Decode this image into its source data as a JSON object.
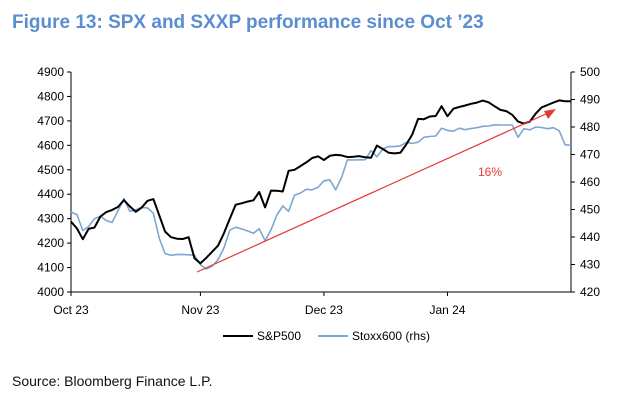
{
  "title": "Figure 13: SPX and SXXP performance since Oct ’23",
  "source": "Source: Bloomberg Finance L.P.",
  "chart_data": {
    "type": "line",
    "title": "Figure 13: SPX and SXXP performance since Oct ’23",
    "x_labels": [
      "Oct 23",
      "Nov 23",
      "Dec 23",
      "Jan 24"
    ],
    "x_label_index": [
      0,
      22,
      43,
      64
    ],
    "y_left": {
      "lim": [
        4000,
        4900
      ],
      "ticks": [
        4000,
        4100,
        4200,
        4300,
        4400,
        4500,
        4600,
        4700,
        4800,
        4900
      ]
    },
    "y_right": {
      "lim": [
        420,
        500
      ],
      "ticks": [
        420,
        430,
        440,
        450,
        460,
        470,
        480,
        490,
        500
      ]
    },
    "grid": false,
    "legend_position": "bottom-center",
    "series": [
      {
        "name": "S&P500",
        "axis": "left",
        "color": "#000000",
        "values": [
          4288,
          4260,
          4216,
          4258,
          4264,
          4309,
          4327,
          4336,
          4348,
          4376,
          4350,
          4328,
          4345,
          4373,
          4380,
          4314,
          4247,
          4224,
          4218,
          4217,
          4224,
          4138,
          4117,
          4140,
          4165,
          4190,
          4240,
          4300,
          4357,
          4363,
          4370,
          4375,
          4409,
          4346,
          4415,
          4414,
          4411,
          4496,
          4500,
          4515,
          4530,
          4548,
          4555,
          4540,
          4557,
          4561,
          4559,
          4552,
          4553,
          4556,
          4551,
          4549,
          4599,
          4585,
          4570,
          4567,
          4570,
          4604,
          4644,
          4708,
          4707,
          4718,
          4720,
          4760,
          4719,
          4750,
          4757,
          4763,
          4770,
          4775,
          4783,
          4776,
          4760,
          4745,
          4740,
          4725,
          4697,
          4689,
          4697,
          4730,
          4755,
          4765,
          4775,
          4784,
          4780,
          4780
        ]
      },
      {
        "name": "Stoxx600 (rhs)",
        "axis": "left",
        "color": "#7ea6d2",
        "values": [
          4327,
          4317,
          4251,
          4268,
          4300,
          4310,
          4292,
          4285,
          4334,
          4382,
          4330,
          4336,
          4346,
          4344,
          4322,
          4220,
          4157,
          4150,
          4154,
          4153,
          4152,
          4150,
          4112,
          4094,
          4106,
          4132,
          4180,
          4253,
          4265,
          4258,
          4250,
          4240,
          4259,
          4210,
          4254,
          4315,
          4352,
          4330,
          4396,
          4405,
          4420,
          4418,
          4428,
          4455,
          4459,
          4418,
          4469,
          4541,
          4540,
          4541,
          4541,
          4578,
          4553,
          4585,
          4595,
          4595,
          4598,
          4612,
          4608,
          4613,
          4633,
          4636,
          4638,
          4670,
          4661,
          4658,
          4670,
          4664,
          4669,
          4672,
          4678,
          4679,
          4684,
          4683,
          4683,
          4683,
          4633,
          4668,
          4663,
          4675,
          4673,
          4668,
          4672,
          4660,
          4602,
          4600
        ]
      }
    ],
    "annotation": {
      "label": "16%",
      "color": "#e53935"
    }
  },
  "legend": [
    "S&P500",
    "Stoxx600 (rhs)"
  ]
}
